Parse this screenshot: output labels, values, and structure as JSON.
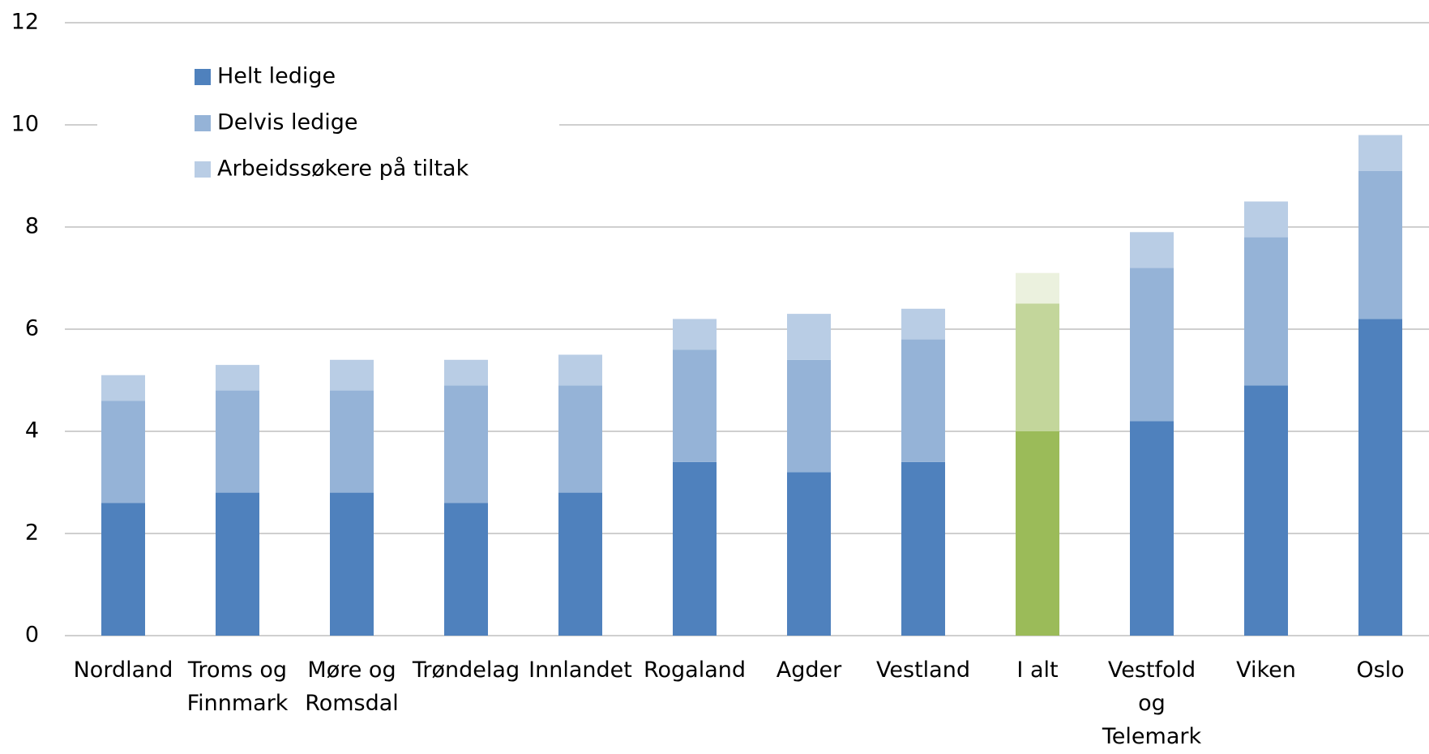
{
  "chart_data": {
    "type": "stacked_bar",
    "categories": [
      "Nordland",
      "Troms og Finnmark",
      "Møre og Romsdal",
      "Trøndelag",
      "Innlandet",
      "Rogaland",
      "Agder",
      "Vestland",
      "I alt",
      "Vestfold og Telemark",
      "Viken",
      "Oslo"
    ],
    "series": [
      {
        "name": "Helt ledige",
        "color": "#4f81bd",
        "values": [
          2.6,
          2.8,
          2.8,
          2.6,
          2.8,
          3.4,
          3.2,
          3.4,
          4.0,
          4.2,
          4.9,
          6.2
        ],
        "colors": [
          "#4f81bd",
          "#4f81bd",
          "#4f81bd",
          "#4f81bd",
          "#4f81bd",
          "#4f81bd",
          "#4f81bd",
          "#4f81bd",
          "#9bbb59",
          "#4f81bd",
          "#4f81bd",
          "#4f81bd"
        ]
      },
      {
        "name": "Delvis ledige",
        "color": "#95b3d7",
        "values": [
          2.0,
          2.0,
          2.0,
          2.3,
          2.1,
          2.2,
          2.2,
          2.4,
          2.5,
          3.0,
          2.9,
          2.9
        ],
        "colors": [
          "#95b3d7",
          "#95b3d7",
          "#95b3d7",
          "#95b3d7",
          "#95b3d7",
          "#95b3d7",
          "#95b3d7",
          "#95b3d7",
          "#c3d69b",
          "#95b3d7",
          "#95b3d7",
          "#95b3d7"
        ]
      },
      {
        "name": "Arbeidssøkere på tiltak",
        "color": "#b9cde5",
        "values": [
          0.5,
          0.5,
          0.6,
          0.5,
          0.6,
          0.6,
          0.9,
          0.6,
          0.6,
          0.7,
          0.7,
          0.7
        ],
        "colors": [
          "#b9cde5",
          "#b9cde5",
          "#b9cde5",
          "#b9cde5",
          "#b9cde5",
          "#b9cde5",
          "#b9cde5",
          "#b9cde5",
          "#ebf1de",
          "#b9cde5",
          "#b9cde5",
          "#b9cde5"
        ]
      }
    ],
    "ylim": [
      0,
      12
    ],
    "yticks": [
      0,
      2,
      4,
      6,
      8,
      10,
      12
    ],
    "grid": true,
    "legend": "top-left"
  }
}
